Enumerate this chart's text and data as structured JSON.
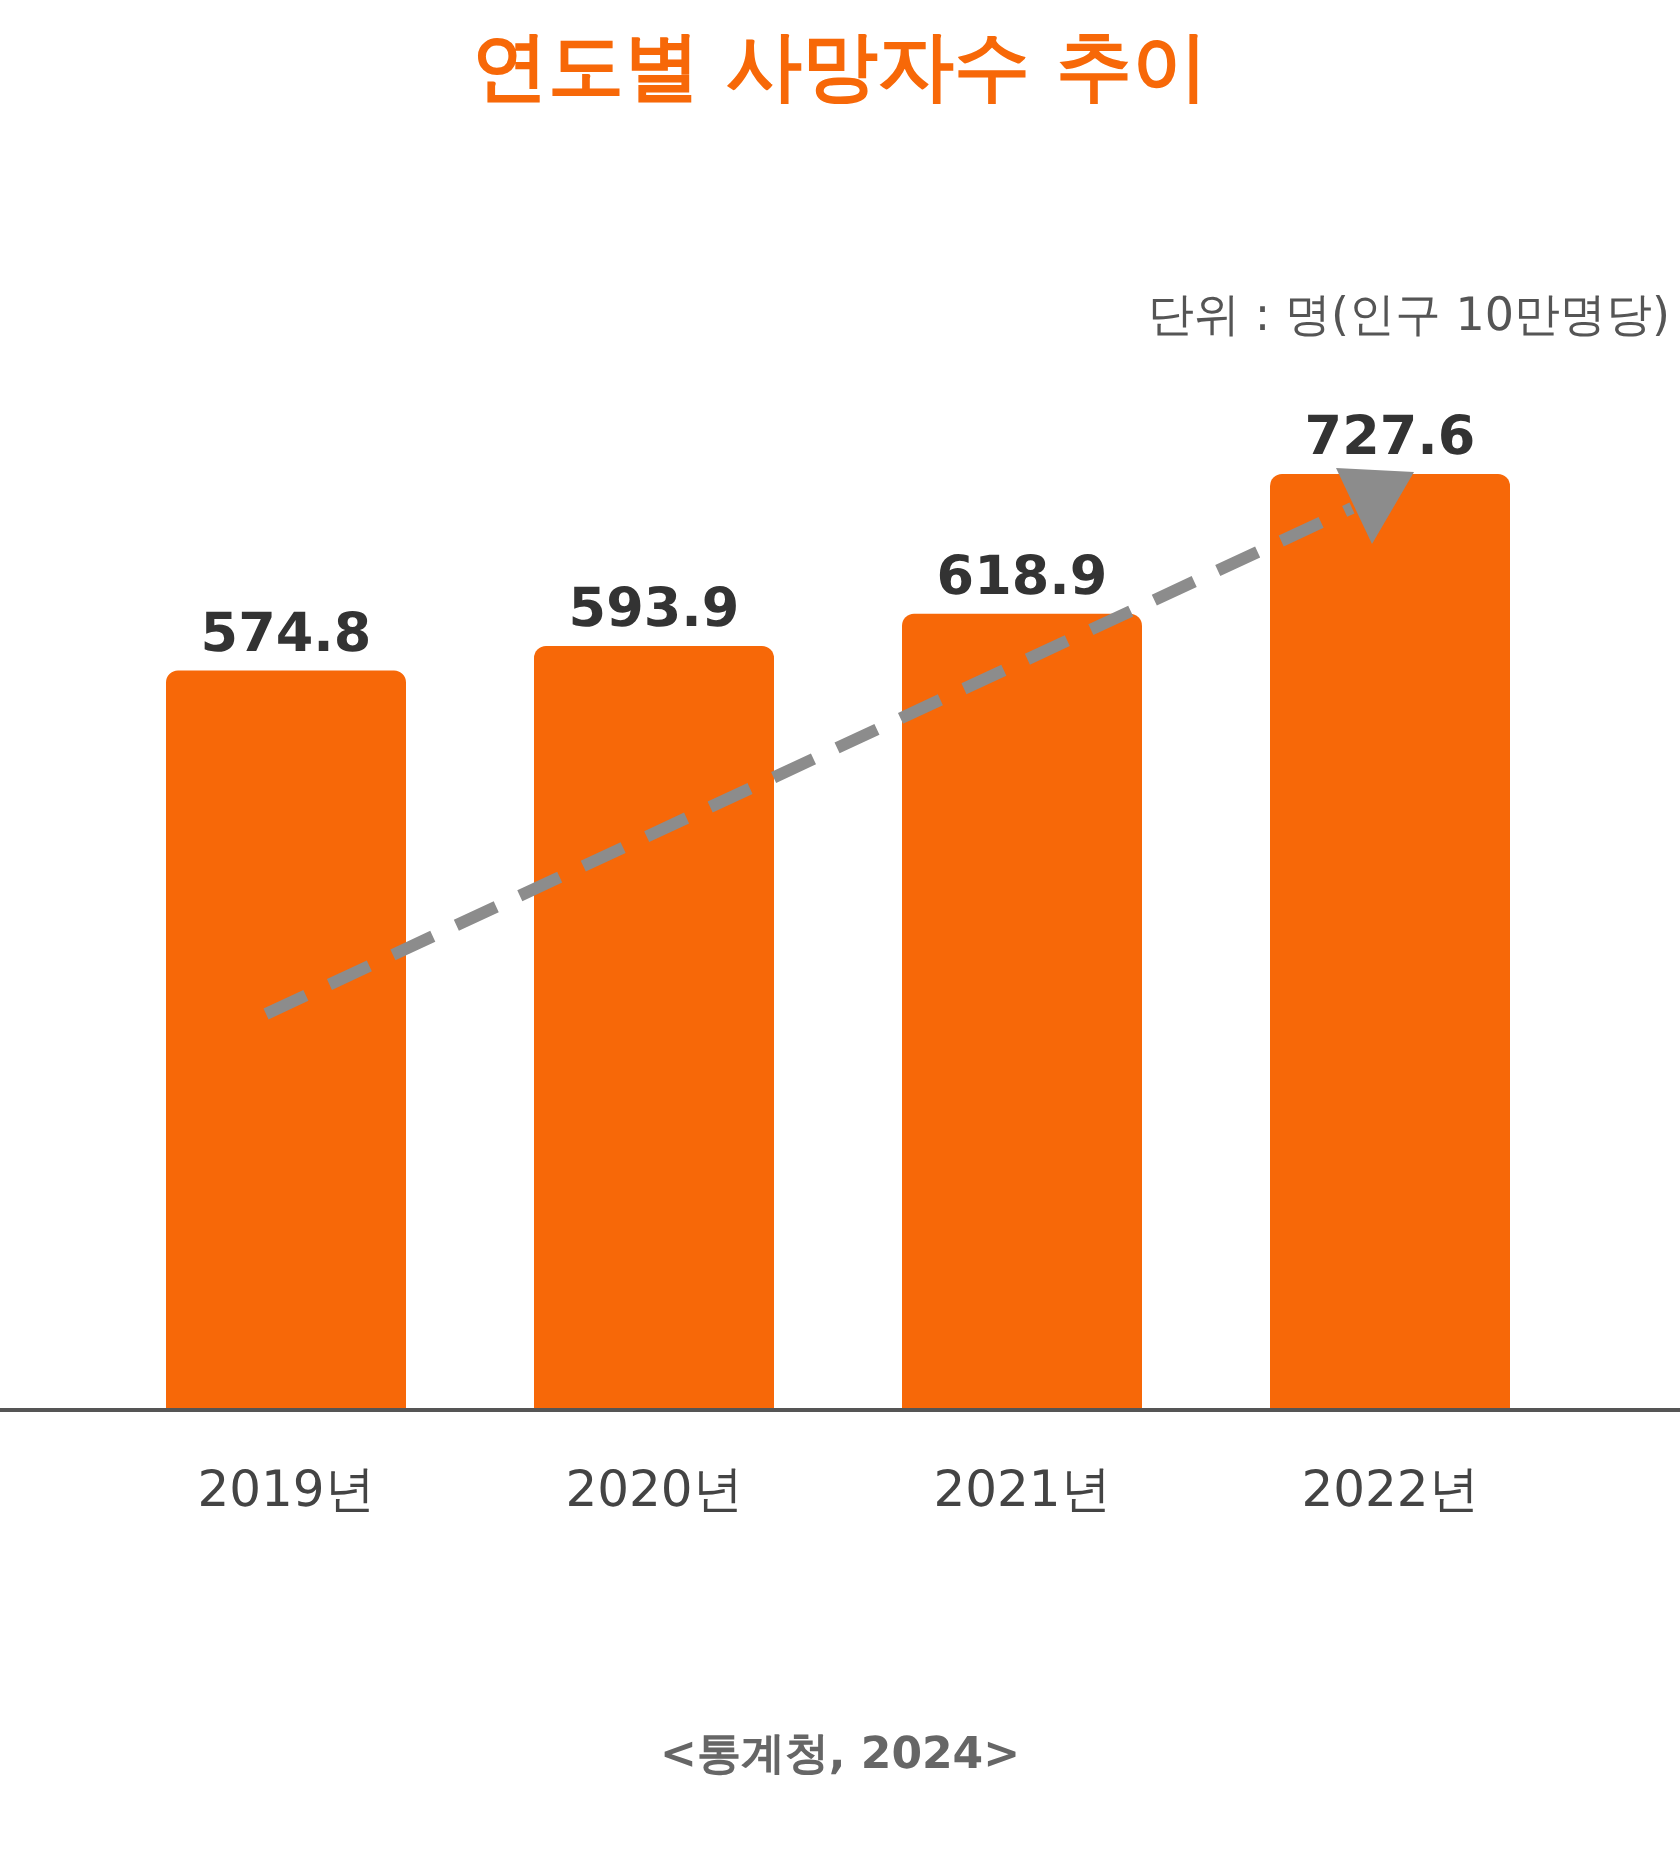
{
  "chart_data": {
    "type": "bar",
    "title": "연도별 사망자수 추이",
    "categories": [
      "2019년",
      "2020년",
      "2021년",
      "2022년"
    ],
    "values": [
      574.8,
      593.9,
      618.9,
      727.6
    ],
    "color": "#f76808",
    "tick_labels": "x",
    "data_labels": true,
    "annotations": [
      "단위 : 명(인구 10만명당)",
      "<통계청, 2024>"
    ]
  }
}
